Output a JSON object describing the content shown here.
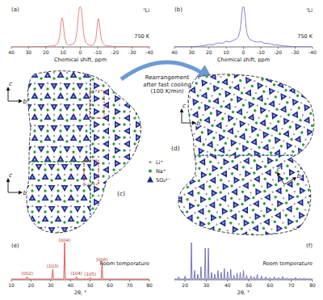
{
  "chart_data": [
    {
      "type": "line",
      "title": "(a)",
      "annotations": [
        "⁷Li",
        "750 K"
      ],
      "xlabel": "Chemical shift, ppm",
      "xlim": [
        40,
        -40
      ],
      "xticks": [
        40,
        30,
        20,
        10,
        0,
        -10,
        -20,
        -30,
        -40
      ],
      "ylim": [
        0,
        100
      ],
      "tick_labels": "x",
      "x": [
        40,
        30,
        25,
        20,
        17,
        15,
        14,
        13,
        12,
        11.5,
        11,
        10.5,
        10,
        9.5,
        9,
        8,
        7,
        6,
        5,
        4,
        3,
        2,
        1.5,
        1,
        0.5,
        0,
        -0.5,
        -1,
        -1.5,
        -2,
        -3,
        -4,
        -5,
        -6,
        -7,
        -8,
        -9,
        -9.5,
        -10,
        -10.5,
        -11,
        -11.5,
        -12,
        -13,
        -14,
        -15,
        -17,
        -20,
        -25,
        -30,
        -40
      ],
      "series": [
        {
          "color": "#e07a7a",
          "values": [
            0,
            0,
            0.5,
            1,
            2,
            3,
            5,
            10,
            25,
            45,
            65,
            72,
            62,
            40,
            22,
            8,
            5,
            5,
            6,
            8,
            14,
            35,
            60,
            85,
            98,
            100,
            95,
            78,
            52,
            30,
            12,
            7,
            5,
            4,
            4,
            7,
            20,
            40,
            62,
            70,
            60,
            40,
            22,
            9,
            5,
            3,
            2,
            1,
            0.5,
            0,
            0
          ]
        }
      ]
    },
    {
      "type": "line",
      "title": "(b)",
      "annotations": [
        "⁷Li",
        "750 K"
      ],
      "xlabel": "Chemical shift, ppm",
      "xlim": [
        40,
        -40
      ],
      "xticks": [
        40,
        30,
        20,
        10,
        0,
        -10,
        -20,
        -30,
        -40
      ],
      "ylim": [
        0,
        100
      ],
      "tick_labels": "x",
      "x": [
        40,
        30,
        25,
        22,
        20,
        18,
        16,
        14,
        12,
        10,
        8,
        6,
        5,
        4,
        3,
        2,
        1.5,
        1,
        0.5,
        0,
        -0.5,
        -1,
        -1.5,
        -2,
        -3,
        -4,
        -5,
        -6,
        -8,
        -10,
        -12,
        -14,
        -16,
        -18,
        -20,
        -22,
        -25,
        -30,
        -40
      ],
      "series": [
        {
          "color": "#7878c8",
          "values": [
            0,
            0.5,
            2,
            4,
            6,
            5,
            8,
            10,
            9,
            14,
            12,
            16,
            18,
            20,
            25,
            40,
            55,
            80,
            98,
            100,
            95,
            75,
            50,
            35,
            22,
            18,
            16,
            14,
            12,
            13,
            9,
            9,
            7,
            5,
            5,
            3,
            2,
            0.5,
            0
          ]
        }
      ]
    },
    {
      "type": "line",
      "title": "(e)",
      "annotations": [
        "Room temperature"
      ],
      "xlabel": "2θ, °",
      "xlim": [
        10,
        80
      ],
      "xticks": [
        10,
        20,
        30,
        40,
        50,
        60,
        70,
        80
      ],
      "ylim": [
        0,
        100
      ],
      "tick_labels": "x",
      "x": [
        10,
        17.6,
        18,
        18.4,
        30.6,
        31,
        31.4,
        36.6,
        37,
        37.4,
        42.6,
        43,
        43.4,
        49.6,
        50,
        50.4,
        55.6,
        56,
        56.4,
        80
      ],
      "series": [
        {
          "color": "#e04848",
          "values": [
            2,
            2,
            8,
            2,
            2,
            28,
            2,
            2,
            100,
            2,
            2,
            8,
            2,
            2,
            6,
            2,
            2,
            45,
            2,
            2
          ]
        }
      ],
      "peaks": {
        "x": [
          18,
          31,
          37,
          43,
          50,
          56
        ],
        "labels": [
          "(002)",
          "(103)",
          "(004)",
          "(104)",
          "(105)",
          "(006)"
        ],
        "color": "#c83232"
      }
    },
    {
      "type": "line",
      "title": "(f)",
      "annotations": [
        "Room temperature"
      ],
      "xlabel": "2θ, °",
      "xlim": [
        15,
        80
      ],
      "xticks": [
        20,
        30,
        40,
        50,
        60,
        70,
        80
      ],
      "ylim": [
        0,
        100
      ],
      "tick_labels": "x",
      "x": [
        15,
        16.7,
        17,
        17.3,
        19.7,
        20,
        20.3,
        22.7,
        23,
        23.3,
        24.2,
        24.5,
        24.8,
        25.7,
        26,
        26.3,
        27.2,
        27.5,
        27.8,
        29.2,
        29.5,
        29.8,
        30.7,
        31,
        31.3,
        32.2,
        32.5,
        32.8,
        33.7,
        34,
        34.3,
        35.2,
        35.5,
        35.8,
        36.7,
        37,
        37.3,
        38.2,
        38.5,
        38.8,
        39.7,
        40,
        40.3,
        41.2,
        41.5,
        41.8,
        42.7,
        43,
        43.3,
        44.2,
        44.5,
        44.8,
        45.7,
        46,
        46.3,
        47.2,
        47.5,
        47.8,
        48.7,
        49,
        49.3,
        50.7,
        51,
        51.3,
        52.2,
        52.5,
        52.8,
        53.7,
        54,
        54.3,
        55.7,
        56,
        56.3,
        57.7,
        58,
        58.3,
        59.7,
        60,
        60.3,
        61.7,
        62,
        62.3,
        63.7,
        64,
        64.3,
        65.7,
        66,
        66.3,
        67.7,
        68,
        68.3,
        69.7,
        70,
        70.3,
        71.7,
        72,
        72.3,
        73.7,
        74,
        74.3,
        75.7,
        76,
        76.3,
        77.7,
        78,
        78.3,
        80
      ],
      "series": [
        {
          "color": "#6a6ab4",
          "values": [
            2,
            2,
            8,
            2,
            2,
            10,
            2,
            2,
            100,
            2,
            2,
            25,
            2,
            2,
            15,
            2,
            2,
            35,
            2,
            2,
            85,
            2,
            2,
            85,
            2,
            2,
            20,
            2,
            2,
            15,
            2,
            2,
            25,
            2,
            2,
            20,
            2,
            2,
            30,
            2,
            2,
            22,
            2,
            2,
            28,
            2,
            2,
            12,
            2,
            2,
            18,
            2,
            2,
            20,
            2,
            2,
            25,
            2,
            2,
            12,
            2,
            2,
            10,
            2,
            2,
            8,
            2,
            2,
            14,
            2,
            2,
            10,
            2,
            2,
            8,
            2,
            2,
            6,
            2,
            2,
            8,
            2,
            2,
            6,
            2,
            2,
            9,
            2,
            2,
            5,
            2,
            2,
            4,
            2,
            2,
            6,
            2,
            2,
            4,
            2,
            2,
            5,
            2,
            2,
            3,
            2,
            2
          ]
        }
      ]
    }
  ],
  "transition": [
    "Rearrangement",
    "after fast cooling",
    "(100 K/min)"
  ],
  "structures": [
    {
      "label": "(c)",
      "axes": [
        [
          "c",
          "b"
        ],
        [
          "c",
          "b"
        ]
      ]
    },
    {
      "label": "(d)",
      "axes": [
        [
          "c",
          "b"
        ],
        [
          "c",
          "b"
        ]
      ]
    }
  ],
  "species_legend": [
    "Li⁺",
    "Na⁺",
    "SO₄²⁻"
  ]
}
